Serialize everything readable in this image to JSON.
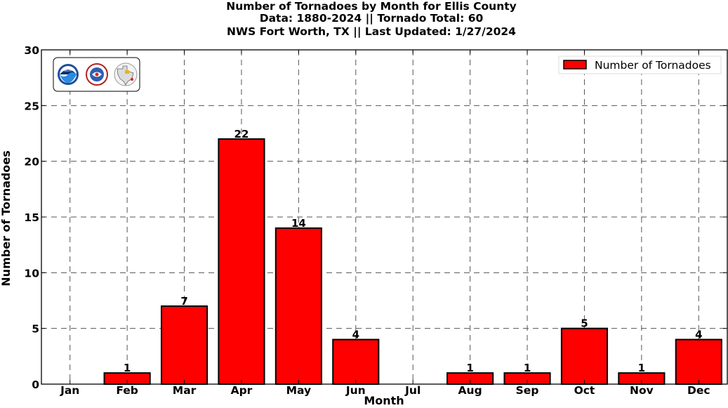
{
  "chart_data": {
    "type": "bar",
    "title_lines": [
      "Number of Tornadoes by Month for Ellis County",
      "Data: 1880-2024 || Tornado Total: 60",
      "NWS Fort Worth, TX || Last Updated: 1/27/2024"
    ],
    "categories": [
      "Jan",
      "Feb",
      "Mar",
      "Apr",
      "May",
      "Jun",
      "Jul",
      "Aug",
      "Sep",
      "Oct",
      "Nov",
      "Dec"
    ],
    "series": [
      {
        "name": "Number of Tornadoes",
        "values": [
          0,
          1,
          7,
          22,
          14,
          4,
          0,
          1,
          1,
          5,
          1,
          4
        ]
      }
    ],
    "data_labels": [
      "",
      "1",
      "7",
      "22",
      "14",
      "4",
      "",
      "1",
      "1",
      "5",
      "1",
      "4"
    ],
    "xlabel": "Month",
    "ylabel": "Number of Tornadoes",
    "ylim": [
      0,
      30
    ],
    "yticks": [
      "0",
      "5",
      "10",
      "15",
      "20",
      "25",
      "30"
    ],
    "grid": true,
    "legend_position": "top-right",
    "colors": {
      "bar": "#ff0000",
      "edge": "#000000",
      "grid": "#555555"
    },
    "logos": [
      "noaa-logo",
      "nws-logo",
      "nws-fort-worth-logo"
    ]
  }
}
